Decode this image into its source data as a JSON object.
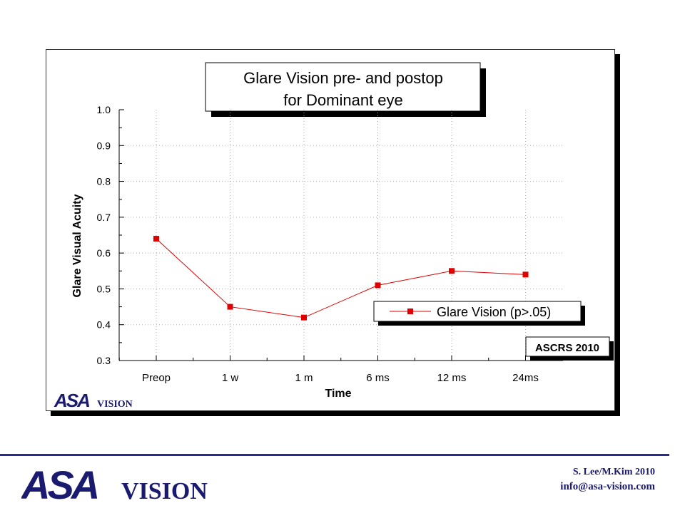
{
  "chart_data": {
    "type": "line",
    "title_line1": "Glare Vision pre- and postop",
    "title_line2": "for Dominant eye",
    "xlabel": "Time",
    "ylabel": "Glare Visual Acuity",
    "categories": [
      "Preop",
      "1 w",
      "1 m",
      "6 ms",
      "12 ms",
      "24ms"
    ],
    "series": [
      {
        "name": "Glare Vision (p>.05)",
        "values": [
          0.64,
          0.45,
          0.42,
          0.51,
          0.55,
          0.54
        ],
        "color": "#e00000"
      }
    ],
    "ylim": [
      0.3,
      1.0
    ],
    "yticks": [
      "0.3",
      "0.4",
      "0.5",
      "0.6",
      "0.7",
      "0.8",
      "0.9",
      "1.0"
    ],
    "grid": true,
    "legend_position": "lower-right",
    "badge": "ASCRS 2010"
  },
  "logo": {
    "primary": "ASA",
    "secondary": "VISION",
    "color": "#1a1a6e"
  },
  "footer": {
    "author": "S. Lee/M.Kim  2010",
    "email": "info@asa-vision.com"
  }
}
